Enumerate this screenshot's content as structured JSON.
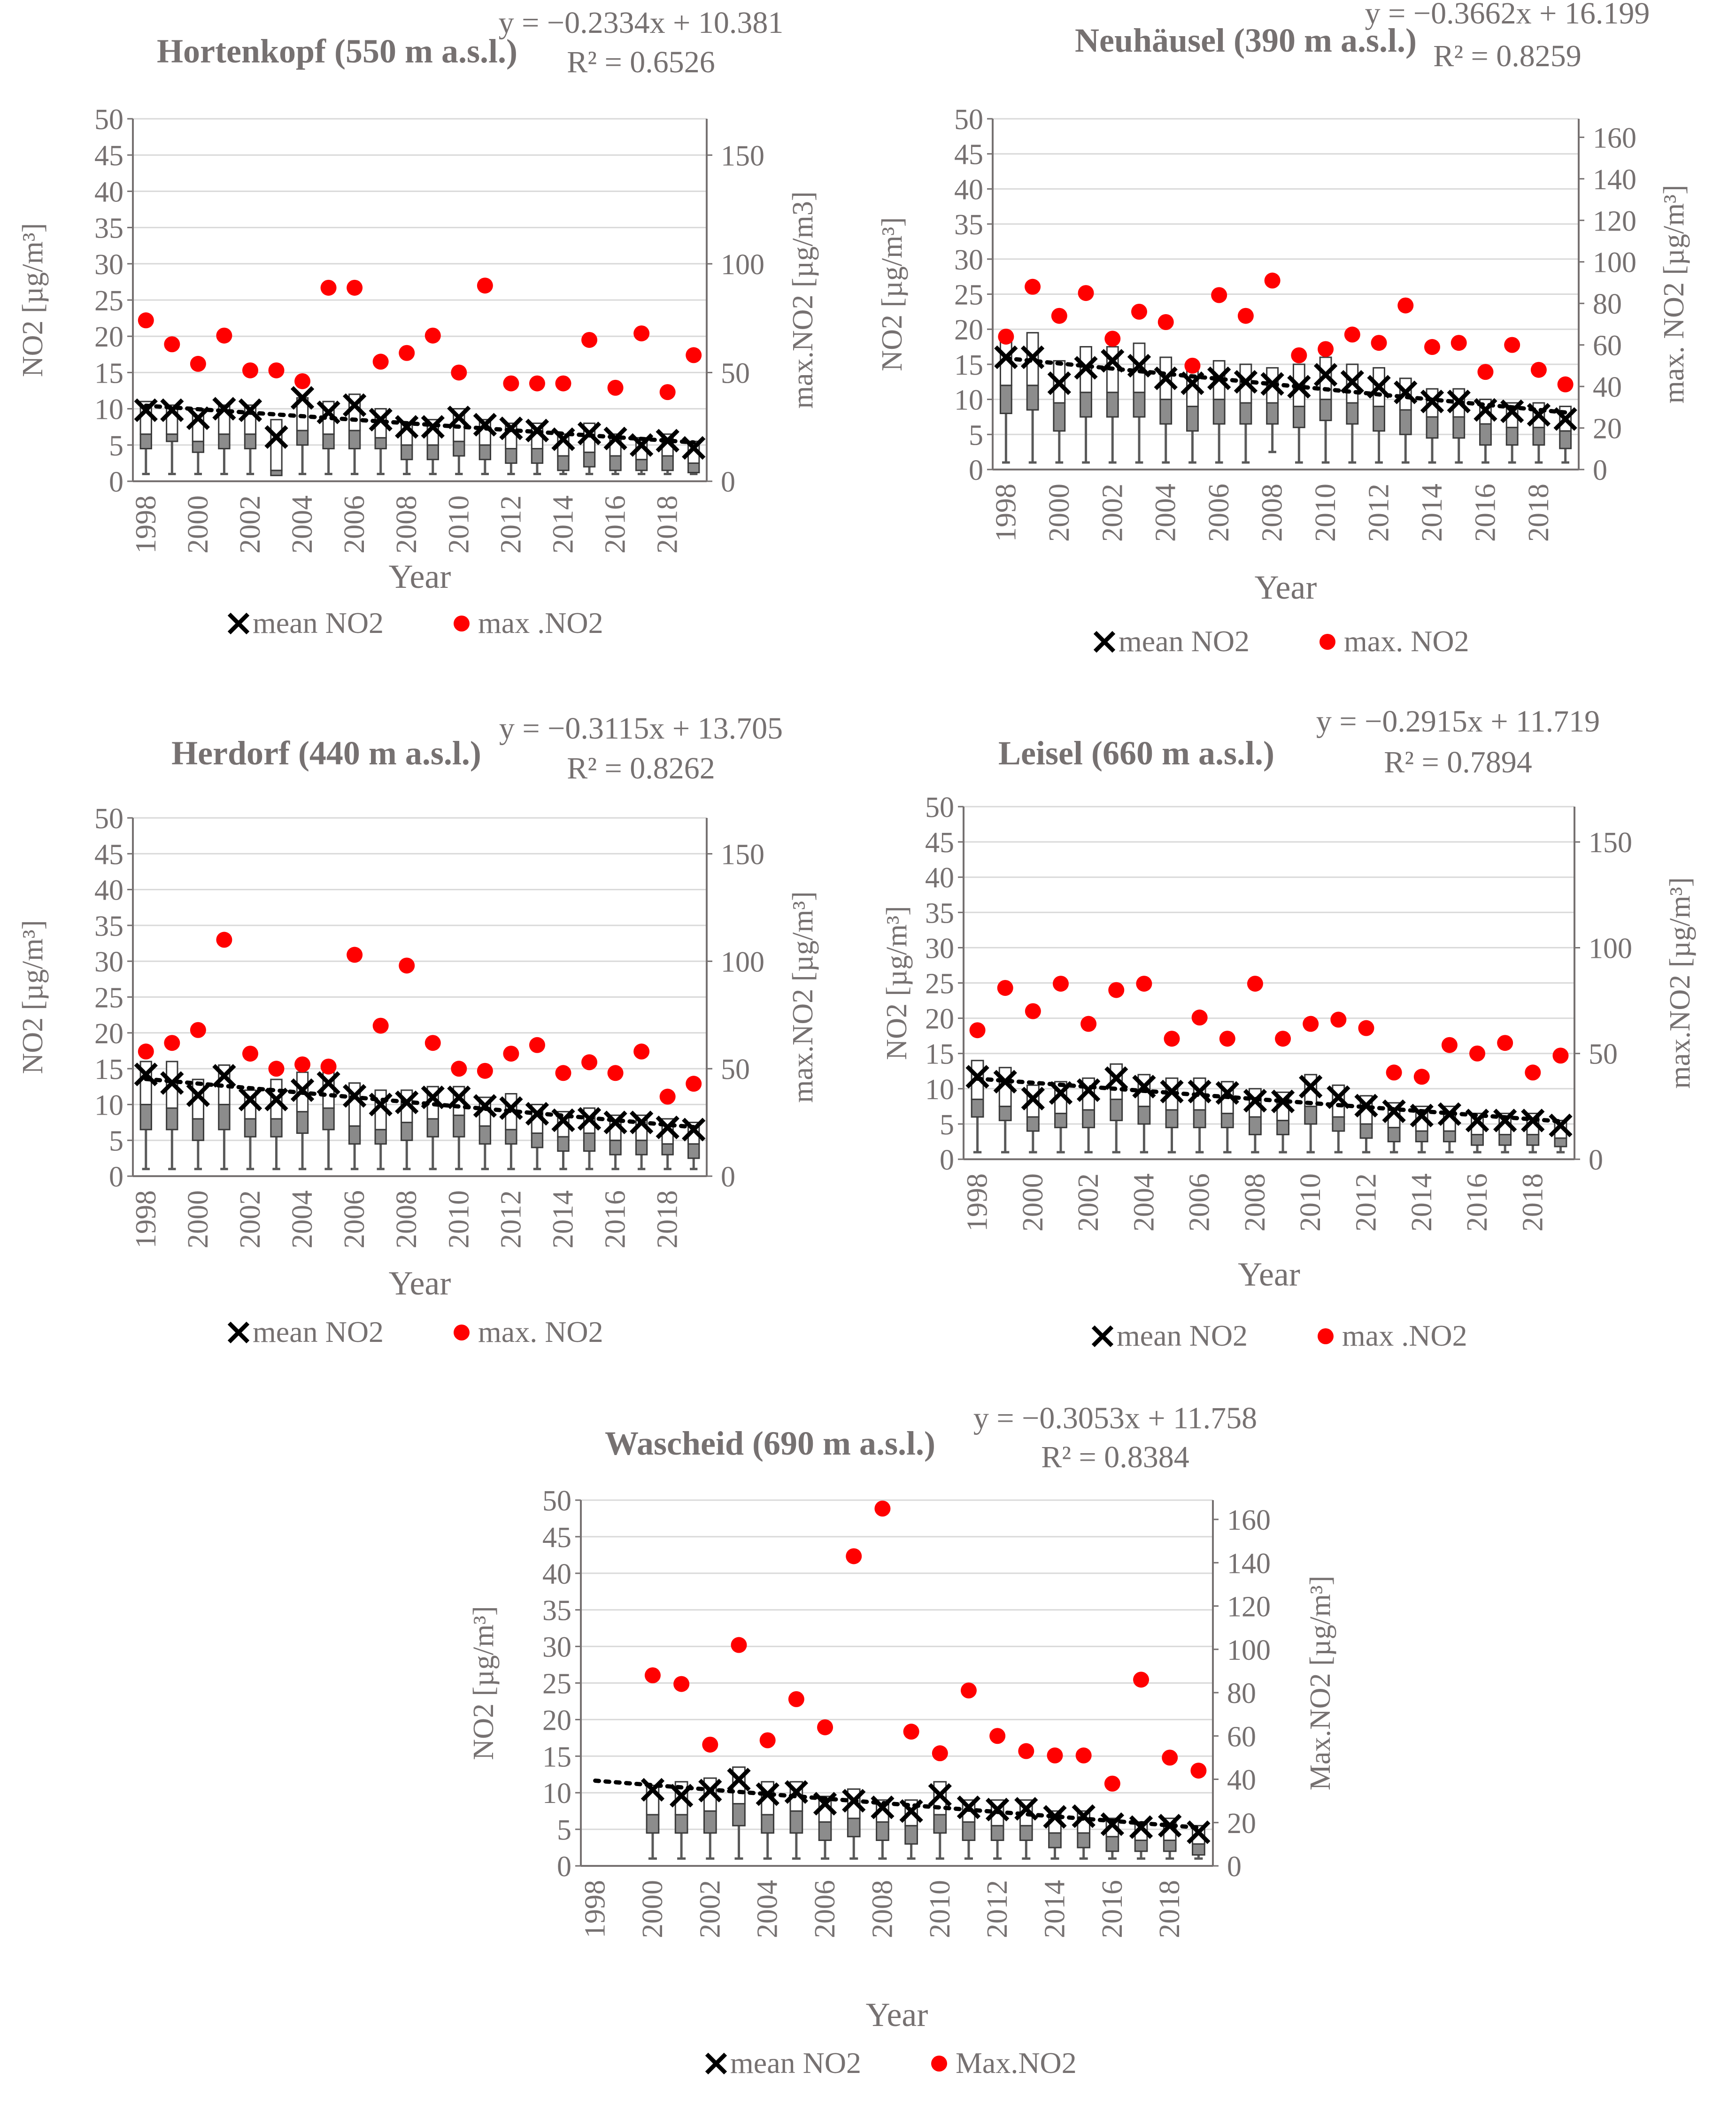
{
  "colors": {
    "axis": "#767171",
    "text": "#767171",
    "grid": "#d9d9d9",
    "box_lower": "#8c8c8c",
    "box_upper": "#ffffff",
    "box_outline": "#3a3a3a",
    "whisker": "#595959",
    "mean_marker": "#000000",
    "max_marker": "#ff0000",
    "trend": "#000000"
  },
  "chart_data": [
    {
      "id": "hortenkopf",
      "type": "box",
      "title": "Hortenkopf (550 m a.s.l.)",
      "equation": "y = −0.2334x + 10.381",
      "r2": "R² = 0.6526",
      "xlabel": "Year",
      "ylabel": "NO2 [µg/m³]",
      "y2label": "max.NO2 [µg/m3]",
      "legend": {
        "mean": "mean NO2",
        "max": "max .NO2"
      },
      "ylim": [
        0,
        50
      ],
      "yticks": [
        "0",
        "5",
        "10",
        "15",
        "20",
        "25",
        "30",
        "35",
        "40",
        "45",
        "50"
      ],
      "y2lim": [
        0,
        166.7
      ],
      "y2ticks": [
        "0",
        "50",
        "100",
        "150"
      ],
      "year_ticks": [
        "1998",
        "2000",
        "2002",
        "2004",
        "2006",
        "2008",
        "2010",
        "2012",
        "2014",
        "2016",
        "2018"
      ],
      "years": [
        1998,
        1999,
        2000,
        2001,
        2002,
        2003,
        2004,
        2005,
        2006,
        2007,
        2008,
        2009,
        2010,
        2011,
        2012,
        2013,
        2014,
        2015,
        2016,
        2017,
        2018,
        2019
      ],
      "mean": [
        9.8,
        9.8,
        8.7,
        10.0,
        9.8,
        6.1,
        11.5,
        9.5,
        10.5,
        8.5,
        7.5,
        7.5,
        8.8,
        7.8,
        7.3,
        7.0,
        5.8,
        6.6,
        5.9,
        5.0,
        5.6,
        4.6
      ],
      "q1": [
        4.5,
        5.5,
        4.0,
        4.5,
        4.5,
        0.8,
        5.0,
        4.5,
        4.5,
        4.5,
        3.0,
        3.0,
        3.5,
        3.0,
        2.5,
        2.5,
        1.5,
        2.0,
        1.5,
        1.5,
        1.5,
        1.2
      ],
      "median": [
        6.5,
        6.5,
        5.5,
        6.5,
        6.5,
        1.5,
        7.0,
        6.5,
        7.0,
        6.0,
        5.0,
        5.0,
        5.5,
        5.0,
        4.5,
        4.5,
        3.5,
        4.0,
        3.5,
        3.0,
        3.5,
        2.5
      ],
      "q3": [
        11.0,
        10.5,
        10.0,
        10.5,
        10.5,
        8.5,
        11.5,
        11.0,
        12.0,
        10.0,
        8.0,
        8.5,
        10.0,
        8.5,
        8.0,
        8.0,
        6.5,
        8.0,
        6.5,
        6.0,
        6.5,
        5.5
      ],
      "whisker_low": [
        1,
        1,
        1,
        1,
        1,
        1,
        1,
        1,
        1,
        1,
        1,
        1,
        1,
        1,
        1,
        1,
        1,
        1,
        1,
        1,
        1,
        1
      ],
      "max": [
        74,
        63,
        54,
        67,
        51,
        51,
        46,
        89,
        89,
        55,
        59,
        67,
        50,
        90,
        45,
        45,
        45,
        65,
        43,
        68,
        41,
        58
      ]
    },
    {
      "id": "neuhaeusel",
      "type": "box",
      "title": "Neuhäusel (390 m a.s.l.)",
      "equation": "y = −0.3662x + 16.199",
      "r2": "R² = 0.8259",
      "xlabel": "Year",
      "ylabel": "NO2 [µg/m³]",
      "y2label": "max. NO2 [µg/m³]",
      "legend": {
        "mean": "mean NO2",
        "max": "max. NO2"
      },
      "ylim": [
        0,
        50
      ],
      "yticks": [
        "0",
        "5",
        "10",
        "15",
        "20",
        "25",
        "30",
        "35",
        "40",
        "45",
        "50"
      ],
      "y2lim": [
        0,
        168.9
      ],
      "y2ticks": [
        "0",
        "20",
        "40",
        "60",
        "80",
        "100",
        "120",
        "140",
        "160"
      ],
      "year_ticks": [
        "1998",
        "2000",
        "2002",
        "2004",
        "2006",
        "2008",
        "2010",
        "2012",
        "2014",
        "2016",
        "2018"
      ],
      "years": [
        1998,
        1999,
        2000,
        2001,
        2002,
        2003,
        2004,
        2005,
        2006,
        2007,
        2008,
        2009,
        2010,
        2011,
        2012,
        2013,
        2014,
        2015,
        2016,
        2017,
        2018,
        2019
      ],
      "mean": [
        16.0,
        16.0,
        12.3,
        14.5,
        15.5,
        14.8,
        13.0,
        12.3,
        13.0,
        12.5,
        12.2,
        11.8,
        13.5,
        12.5,
        11.8,
        11.0,
        9.7,
        9.7,
        8.5,
        8.3,
        7.8,
        7.2
      ],
      "q1": [
        8.0,
        8.5,
        5.5,
        7.5,
        7.5,
        7.5,
        6.5,
        5.5,
        6.5,
        6.5,
        6.5,
        6.0,
        7.0,
        6.5,
        5.5,
        5.0,
        4.5,
        4.5,
        3.5,
        3.5,
        3.5,
        3.0
      ],
      "median": [
        12.0,
        12.0,
        9.5,
        11.0,
        11.0,
        11.0,
        10.0,
        9.0,
        10.0,
        9.5,
        9.5,
        9.0,
        10.0,
        9.5,
        9.0,
        8.5,
        7.5,
        7.5,
        6.5,
        6.0,
        6.0,
        5.5
      ],
      "q3": [
        19.5,
        19.5,
        15.5,
        17.5,
        17.5,
        18.0,
        16.0,
        15.0,
        15.5,
        15.0,
        14.5,
        15.0,
        16.0,
        15.0,
        14.5,
        13.0,
        11.5,
        11.5,
        10.0,
        9.5,
        9.5,
        9.0
      ],
      "whisker_low": [
        1,
        1,
        1,
        1,
        1,
        1,
        1,
        1,
        1,
        1,
        2.5,
        1,
        1,
        1,
        1,
        1,
        1,
        1,
        1,
        1,
        1,
        1
      ],
      "max": [
        64,
        88,
        74,
        85,
        63,
        76,
        71,
        50,
        84,
        74,
        91,
        55,
        58,
        65,
        61,
        79,
        59,
        61,
        47,
        60,
        48,
        41
      ]
    },
    {
      "id": "herdorf",
      "type": "box",
      "title": "Herdorf (440 m a.s.l.)",
      "equation": "y = −0.3115x + 13.705",
      "r2": "R² = 0.8262",
      "xlabel": "Year",
      "ylabel": "NO2 [µg/m³]",
      "y2label": "max.NO2 [µg/m³]",
      "legend": {
        "mean": "mean NO2",
        "max": "max. NO2"
      },
      "ylim": [
        0,
        50
      ],
      "yticks": [
        "0",
        "5",
        "10",
        "15",
        "20",
        "25",
        "30",
        "35",
        "40",
        "45",
        "50"
      ],
      "y2lim": [
        0,
        166.7
      ],
      "y2ticks": [
        "0",
        "50",
        "100",
        "150"
      ],
      "year_ticks": [
        "1998",
        "2000",
        "2002",
        "2004",
        "2006",
        "2008",
        "2010",
        "2012",
        "2014",
        "2016",
        "2018"
      ],
      "years": [
        1998,
        1999,
        2000,
        2001,
        2002,
        2003,
        2004,
        2005,
        2006,
        2007,
        2008,
        2009,
        2010,
        2011,
        2012,
        2013,
        2014,
        2015,
        2016,
        2017,
        2018,
        2019
      ],
      "mean": [
        14.2,
        13.0,
        11.3,
        14.0,
        10.7,
        10.7,
        12.0,
        13.0,
        11.2,
        10.0,
        10.3,
        11.0,
        11.0,
        9.8,
        9.5,
        8.7,
        7.8,
        8.0,
        7.5,
        7.5,
        6.8,
        6.5
      ],
      "q1": [
        6.5,
        6.5,
        5.0,
        6.5,
        5.5,
        5.5,
        6.0,
        6.5,
        4.5,
        4.5,
        5.0,
        5.5,
        5.5,
        4.5,
        4.5,
        4.0,
        3.5,
        3.5,
        3.0,
        3.0,
        3.0,
        2.5
      ],
      "median": [
        10.0,
        9.5,
        8.0,
        10.0,
        8.0,
        8.0,
        9.0,
        9.5,
        7.0,
        6.5,
        7.5,
        8.0,
        8.5,
        7.0,
        6.5,
        6.0,
        5.5,
        6.0,
        5.0,
        5.0,
        4.5,
        4.5
      ],
      "q3": [
        16.0,
        16.0,
        13.5,
        15.5,
        12.0,
        13.5,
        14.5,
        15.5,
        13.0,
        12.0,
        12.0,
        12.5,
        12.5,
        11.0,
        11.5,
        10.0,
        9.0,
        9.5,
        8.5,
        8.5,
        8.0,
        7.5
      ],
      "whisker_low": [
        1,
        1,
        1,
        1,
        1,
        1,
        1,
        1,
        1,
        1,
        1,
        1,
        1,
        1,
        1,
        1,
        1,
        1,
        1,
        1,
        1,
        1
      ],
      "max": [
        58,
        62,
        68,
        110,
        57,
        50,
        52,
        51,
        103,
        70,
        98,
        62,
        50,
        49,
        57,
        61,
        48,
        53,
        48,
        58,
        37,
        43
      ]
    },
    {
      "id": "leisel",
      "type": "box",
      "title": "Leisel (660 m a.s.l.)",
      "equation": "y = −0.2915x + 11.719",
      "r2": "R² = 0.7894",
      "xlabel": "Year",
      "ylabel": "NO2 [µg/m³]",
      "y2label": "max.NO2 [µg/m³]",
      "legend": {
        "mean": "mean NO2",
        "max": "max .NO2"
      },
      "ylim": [
        0,
        50
      ],
      "yticks": [
        "0",
        "5",
        "10",
        "15",
        "20",
        "25",
        "30",
        "35",
        "40",
        "45",
        "50"
      ],
      "y2lim": [
        0,
        166.7
      ],
      "y2ticks": [
        "0",
        "50",
        "100",
        "150"
      ],
      "year_ticks": [
        "1998",
        "2000",
        "2002",
        "2004",
        "2006",
        "2008",
        "2010",
        "2012",
        "2014",
        "2016",
        "2018"
      ],
      "years": [
        1998,
        1999,
        2000,
        2001,
        2002,
        2003,
        2004,
        2005,
        2006,
        2007,
        2008,
        2009,
        2010,
        2011,
        2012,
        2013,
        2014,
        2015,
        2016,
        2017,
        2018,
        2019
      ],
      "mean": [
        11.7,
        11.0,
        8.6,
        9.4,
        9.8,
        11.5,
        10.3,
        9.6,
        9.6,
        9.4,
        8.3,
        8.2,
        10.3,
        8.8,
        7.6,
        6.8,
        6.2,
        6.4,
        5.5,
        5.5,
        5.5,
        4.8
      ],
      "q1": [
        6.0,
        5.5,
        4.0,
        4.5,
        4.5,
        5.5,
        5.0,
        4.5,
        4.5,
        4.5,
        3.5,
        3.5,
        5.0,
        4.0,
        3.0,
        2.5,
        2.5,
        2.5,
        2.0,
        2.0,
        2.0,
        1.8
      ],
      "median": [
        8.5,
        7.5,
        6.0,
        6.5,
        7.0,
        8.5,
        7.5,
        7.0,
        7.0,
        6.5,
        6.0,
        5.5,
        7.5,
        6.0,
        5.0,
        4.5,
        4.0,
        4.0,
        3.5,
        3.5,
        3.5,
        3.0
      ],
      "q3": [
        14.0,
        13.0,
        10.5,
        11.0,
        11.5,
        13.5,
        12.0,
        11.5,
        11.5,
        11.0,
        10.0,
        9.5,
        12.0,
        10.5,
        9.0,
        8.0,
        7.5,
        7.5,
        6.5,
        6.5,
        6.5,
        5.5
      ],
      "whisker_low": [
        1,
        1,
        1,
        1,
        1,
        1,
        1,
        1,
        1,
        1,
        1,
        1,
        1,
        1,
        1,
        1,
        1,
        1,
        1,
        1,
        1,
        1
      ],
      "max": [
        61,
        81,
        70,
        83,
        64,
        80,
        83,
        57,
        67,
        57,
        83,
        57,
        64,
        66,
        62,
        41,
        39,
        54,
        50,
        55,
        41,
        49
      ]
    },
    {
      "id": "wascheid",
      "type": "box",
      "title": "Wascheid (690 m a.s.l.)",
      "equation": "y = −0.3053x + 11.758",
      "r2": "R² = 0.8384",
      "xlabel": "Year",
      "ylabel": "NO2 [µg/m³]",
      "y2label": "Max.NO2 [µg/m³]",
      "legend": {
        "mean": "mean NO2",
        "max": "Max.NO2"
      },
      "ylim": [
        0,
        50
      ],
      "yticks": [
        "0",
        "5",
        "10",
        "15",
        "20",
        "25",
        "30",
        "35",
        "40",
        "45",
        "50"
      ],
      "y2lim": [
        0,
        168.9
      ],
      "y2ticks": [
        "0",
        "20",
        "40",
        "60",
        "80",
        "100",
        "120",
        "140",
        "160"
      ],
      "year_ticks": [
        "1998",
        "2000",
        "2002",
        "2004",
        "2006",
        "2008",
        "2010",
        "2012",
        "2014",
        "2016",
        "2018"
      ],
      "years": [
        2000,
        2001,
        2002,
        2003,
        2004,
        2005,
        2006,
        2007,
        2008,
        2009,
        2010,
        2011,
        2012,
        2013,
        2014,
        2015,
        2016,
        2017,
        2018,
        2019
      ],
      "mean": [
        10.4,
        9.6,
        10.3,
        11.8,
        9.8,
        10.1,
        8.5,
        8.9,
        8.0,
        7.5,
        9.7,
        8.0,
        7.7,
        7.8,
        6.7,
        6.8,
        5.7,
        5.3,
        5.5,
        4.6
      ],
      "q1": [
        4.5,
        4.5,
        4.5,
        5.5,
        4.5,
        4.5,
        3.5,
        4.0,
        3.5,
        3.0,
        4.5,
        3.5,
        3.5,
        3.5,
        2.5,
        2.5,
        2.0,
        2.0,
        2.0,
        1.5
      ],
      "median": [
        7.0,
        7.0,
        7.5,
        8.5,
        7.0,
        7.5,
        6.0,
        6.5,
        6.0,
        5.5,
        7.0,
        6.0,
        5.5,
        5.5,
        4.5,
        4.5,
        4.0,
        3.5,
        3.5,
        3.0
      ],
      "q3": [
        11.0,
        11.5,
        12.0,
        13.5,
        11.5,
        11.5,
        9.5,
        10.5,
        9.0,
        9.0,
        11.5,
        9.0,
        9.0,
        9.0,
        7.5,
        7.5,
        6.5,
        6.0,
        6.5,
        5.5
      ],
      "whisker_low": [
        1,
        1,
        1,
        1,
        1,
        1,
        1,
        1,
        1,
        1,
        1,
        1,
        1,
        1,
        1,
        1,
        1,
        1,
        1,
        1
      ],
      "max": [
        88,
        84,
        56,
        102,
        58,
        77,
        64,
        143,
        165,
        62,
        52,
        81,
        60,
        53,
        51,
        51,
        38,
        86,
        50,
        44
      ]
    }
  ]
}
